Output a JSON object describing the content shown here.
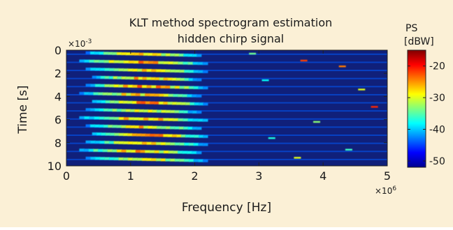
{
  "chart_data": {
    "type": "heatmap",
    "title": [
      "KLT method spectrogram estimation",
      "hidden chirp signal"
    ],
    "xlabel": "Frequency [Hz]",
    "ylabel": "Time [s]",
    "x_multiplier": "×10",
    "x_multiplier_exp": "6",
    "y_multiplier": "×10",
    "y_multiplier_exp": "-3",
    "xlim": [
      0,
      5
    ],
    "ylim": [
      0,
      10
    ],
    "y_reversed": true,
    "x_ticks": [
      0,
      1,
      2,
      3,
      4,
      5
    ],
    "y_ticks": [
      0,
      2,
      4,
      6,
      8,
      10
    ],
    "colorbar": {
      "label": [
        "PS",
        "[dBW]"
      ],
      "range": [
        -52,
        -15
      ],
      "ticks": [
        -20,
        -30,
        -40,
        -50
      ],
      "colormap": "jet"
    },
    "background_value": -50,
    "chirp_bands": [
      {
        "t": 0.35,
        "f_start": 0.3,
        "f_end": 2.1,
        "level": -24
      },
      {
        "t": 1.05,
        "f_start": 0.2,
        "f_end": 2.2,
        "level": -22
      },
      {
        "t": 1.75,
        "f_start": 0.3,
        "f_end": 2.2,
        "level": -25
      },
      {
        "t": 2.45,
        "f_start": 0.4,
        "f_end": 2.1,
        "level": -23
      },
      {
        "t": 3.15,
        "f_start": 0.3,
        "f_end": 2.2,
        "level": -21
      },
      {
        "t": 3.85,
        "f_start": 0.2,
        "f_end": 2.1,
        "level": -24
      },
      {
        "t": 4.55,
        "f_start": 0.4,
        "f_end": 2.2,
        "level": -22
      },
      {
        "t": 5.25,
        "f_start": 0.3,
        "f_end": 2.1,
        "level": -26
      },
      {
        "t": 5.95,
        "f_start": 0.2,
        "f_end": 2.2,
        "level": -23
      },
      {
        "t": 6.65,
        "f_start": 0.3,
        "f_end": 2.1,
        "level": -24
      },
      {
        "t": 7.35,
        "f_start": 0.4,
        "f_end": 2.2,
        "level": -22
      },
      {
        "t": 8.05,
        "f_start": 0.3,
        "f_end": 2.2,
        "level": -25
      },
      {
        "t": 8.75,
        "f_start": 0.2,
        "f_end": 2.1,
        "level": -23
      },
      {
        "t": 9.45,
        "f_start": 0.3,
        "f_end": 2.2,
        "level": -26
      }
    ],
    "spots": [
      {
        "t": 0.9,
        "f": 3.7,
        "level": -22
      },
      {
        "t": 1.4,
        "f": 4.3,
        "level": -24
      },
      {
        "t": 2.6,
        "f": 3.1,
        "level": -38
      },
      {
        "t": 3.4,
        "f": 4.6,
        "level": -30
      },
      {
        "t": 4.9,
        "f": 4.8,
        "level": -21
      },
      {
        "t": 6.2,
        "f": 3.9,
        "level": -33
      },
      {
        "t": 8.6,
        "f": 4.4,
        "level": -36
      },
      {
        "t": 9.3,
        "f": 3.6,
        "level": -30
      },
      {
        "t": 0.3,
        "f": 2.9,
        "level": -34
      },
      {
        "t": 7.6,
        "f": 3.2,
        "level": -37
      }
    ]
  }
}
